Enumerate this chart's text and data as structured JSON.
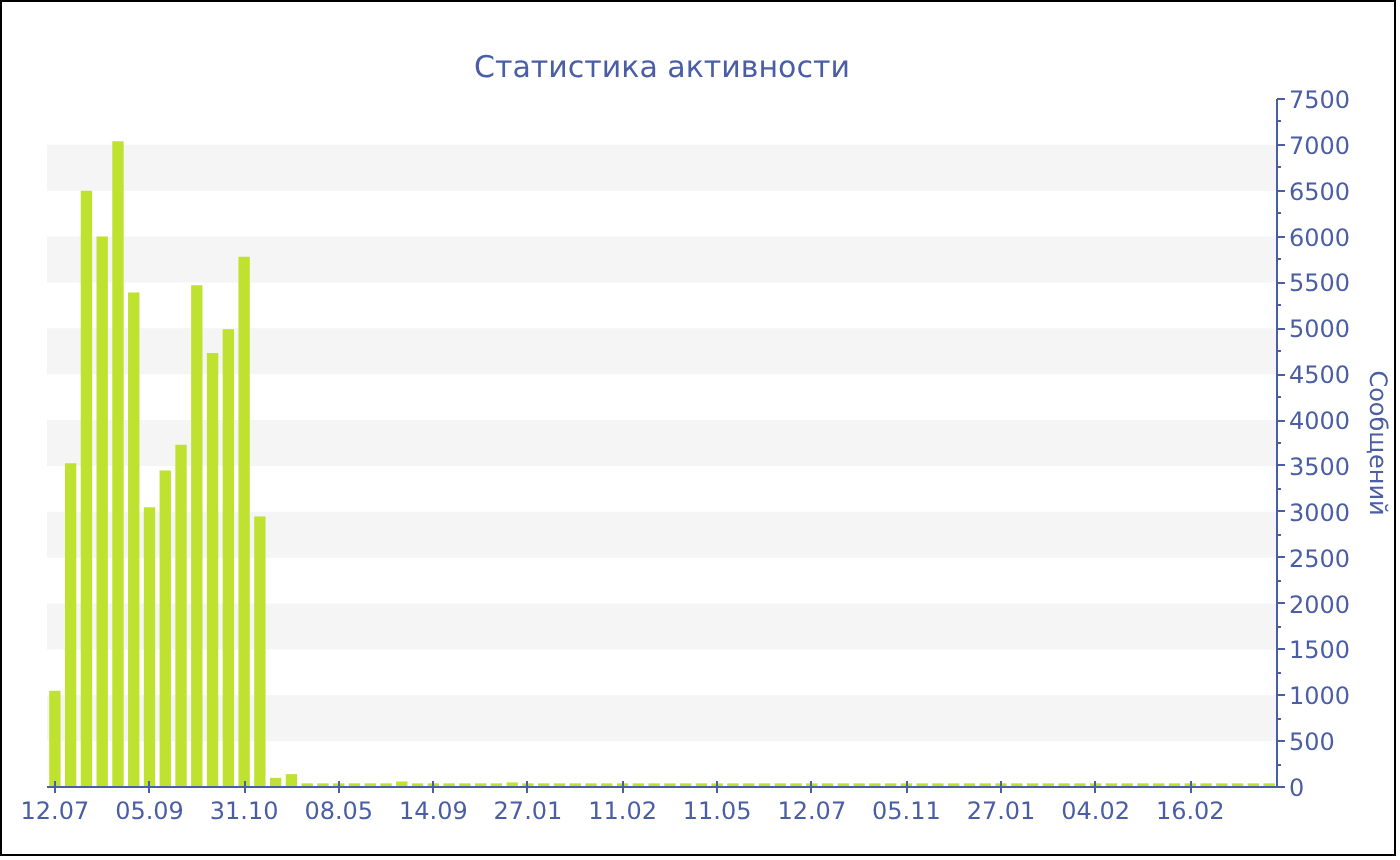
{
  "chart_data": {
    "type": "bar",
    "title": "Статистика активности",
    "ylabel": "Сообщений",
    "categories": [
      "12.07",
      null,
      null,
      null,
      null,
      null,
      "05.09",
      null,
      null,
      null,
      null,
      null,
      "31.10",
      null,
      null,
      null,
      null,
      null,
      "08.05",
      null,
      null,
      null,
      null,
      null,
      "14.09",
      null,
      null,
      null,
      null,
      null,
      "27.01",
      null,
      null,
      null,
      null,
      null,
      "11.02",
      null,
      null,
      null,
      null,
      null,
      "11.05",
      null,
      null,
      null,
      null,
      null,
      "12.07",
      null,
      null,
      null,
      null,
      null,
      "05.11",
      null,
      null,
      null,
      null,
      null,
      "27.01",
      null,
      null,
      null,
      null,
      null,
      "04.02",
      null,
      null,
      null,
      null,
      null,
      "16.02",
      null,
      null,
      null,
      null,
      null
    ],
    "values": [
      1050,
      3530,
      6500,
      6000,
      7040,
      5390,
      3050,
      3450,
      3730,
      5470,
      4730,
      4990,
      5780,
      2950,
      100,
      140,
      40,
      40,
      40,
      40,
      40,
      40,
      60,
      40,
      40,
      40,
      40,
      40,
      40,
      50,
      40,
      40,
      40,
      40,
      40,
      40,
      40,
      40,
      40,
      40,
      40,
      40,
      40,
      40,
      40,
      40,
      40,
      40,
      40,
      40,
      40,
      40,
      40,
      40,
      40,
      40,
      40,
      40,
      40,
      40,
      40,
      40,
      40,
      40,
      40,
      40,
      40,
      40,
      40,
      40,
      40,
      40,
      40,
      40,
      40,
      40,
      40,
      40
    ],
    "color": "#bee22f",
    "ylim": [
      0,
      7500
    ],
    "yticks": [
      0,
      500,
      1000,
      1500,
      2000,
      2500,
      3000,
      3500,
      4000,
      4500,
      5000,
      5500,
      6000,
      6500,
      7000,
      7500
    ]
  }
}
